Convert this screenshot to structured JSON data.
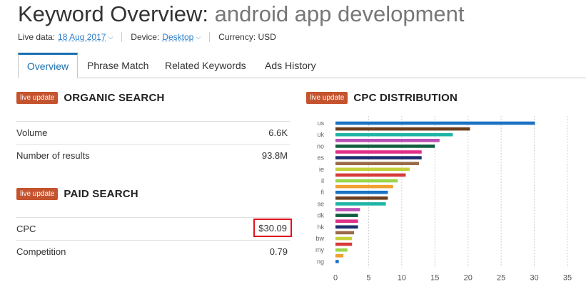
{
  "header": {
    "title_prefix": "Keyword Overview:",
    "keyword": "android app development"
  },
  "meta": {
    "live_label": "Live data:",
    "live_value": "18 Aug 2017",
    "device_label": "Device:",
    "device_value": "Desktop",
    "currency": "Currency: USD"
  },
  "tabs": [
    {
      "label": "Overview",
      "active": true
    },
    {
      "label": "Phrase Match"
    },
    {
      "label": "Related Keywords"
    },
    {
      "label": "Ads History"
    }
  ],
  "badge": "live update",
  "organic": {
    "title": "ORGANIC SEARCH",
    "rows": [
      {
        "label": "Volume",
        "value": "6.6K"
      },
      {
        "label": "Number of results",
        "value": "93.8M"
      }
    ]
  },
  "paid": {
    "title": "PAID SEARCH",
    "rows": [
      {
        "label": "CPC",
        "value": "$30.09"
      },
      {
        "label": "Competition",
        "value": "0.79"
      }
    ]
  },
  "cpc_title": "CPC DISTRIBUTION",
  "chart_data": {
    "type": "bar",
    "orientation": "horizontal",
    "categories": [
      "us",
      "uk",
      "no",
      "es",
      "ie",
      "il",
      "fi",
      "se",
      "dk",
      "hk",
      "bw",
      "my",
      "ng"
    ],
    "bars": [
      {
        "cat": "us",
        "value": 30.1,
        "color": "#1a72c4"
      },
      {
        "cat": "",
        "value": 20.3,
        "color": "#6b3f1c"
      },
      {
        "cat": "uk",
        "value": 17.7,
        "color": "#1fb5a6"
      },
      {
        "cat": "",
        "value": 15.7,
        "color": "#b94fb5"
      },
      {
        "cat": "no",
        "value": 15.0,
        "color": "#0e5e3e"
      },
      {
        "cat": "",
        "value": 13.0,
        "color": "#e0308a"
      },
      {
        "cat": "es",
        "value": 13.0,
        "color": "#1b2f6e"
      },
      {
        "cat": "",
        "value": 12.6,
        "color": "#9b6b49"
      },
      {
        "cat": "ie",
        "value": 11.2,
        "color": "#c5d13a"
      },
      {
        "cat": "",
        "value": 10.6,
        "color": "#d63a3a"
      },
      {
        "cat": "il",
        "value": 9.4,
        "color": "#9bd64a"
      },
      {
        "cat": "",
        "value": 8.7,
        "color": "#f0a030"
      },
      {
        "cat": "fi",
        "value": 7.9,
        "color": "#1a72c4"
      },
      {
        "cat": "",
        "value": 7.9,
        "color": "#6b3f1c"
      },
      {
        "cat": "se",
        "value": 7.6,
        "color": "#1fb5a6"
      },
      {
        "cat": "",
        "value": 3.7,
        "color": "#b94fb5"
      },
      {
        "cat": "dk",
        "value": 3.4,
        "color": "#0e5e3e"
      },
      {
        "cat": "",
        "value": 3.4,
        "color": "#e0308a"
      },
      {
        "cat": "hk",
        "value": 3.4,
        "color": "#1b2f6e"
      },
      {
        "cat": "",
        "value": 2.8,
        "color": "#9b6b49"
      },
      {
        "cat": "bw",
        "value": 2.5,
        "color": "#c5d13a"
      },
      {
        "cat": "",
        "value": 2.5,
        "color": "#d63a3a"
      },
      {
        "cat": "my",
        "value": 1.8,
        "color": "#9bd64a"
      },
      {
        "cat": "",
        "value": 1.2,
        "color": "#f0a030"
      },
      {
        "cat": "ng",
        "value": 0.5,
        "color": "#1a72c4"
      }
    ],
    "x_ticks": [
      0,
      5,
      10,
      15,
      20,
      25,
      30,
      35
    ],
    "xlim": [
      0,
      35
    ],
    "grid": true
  }
}
